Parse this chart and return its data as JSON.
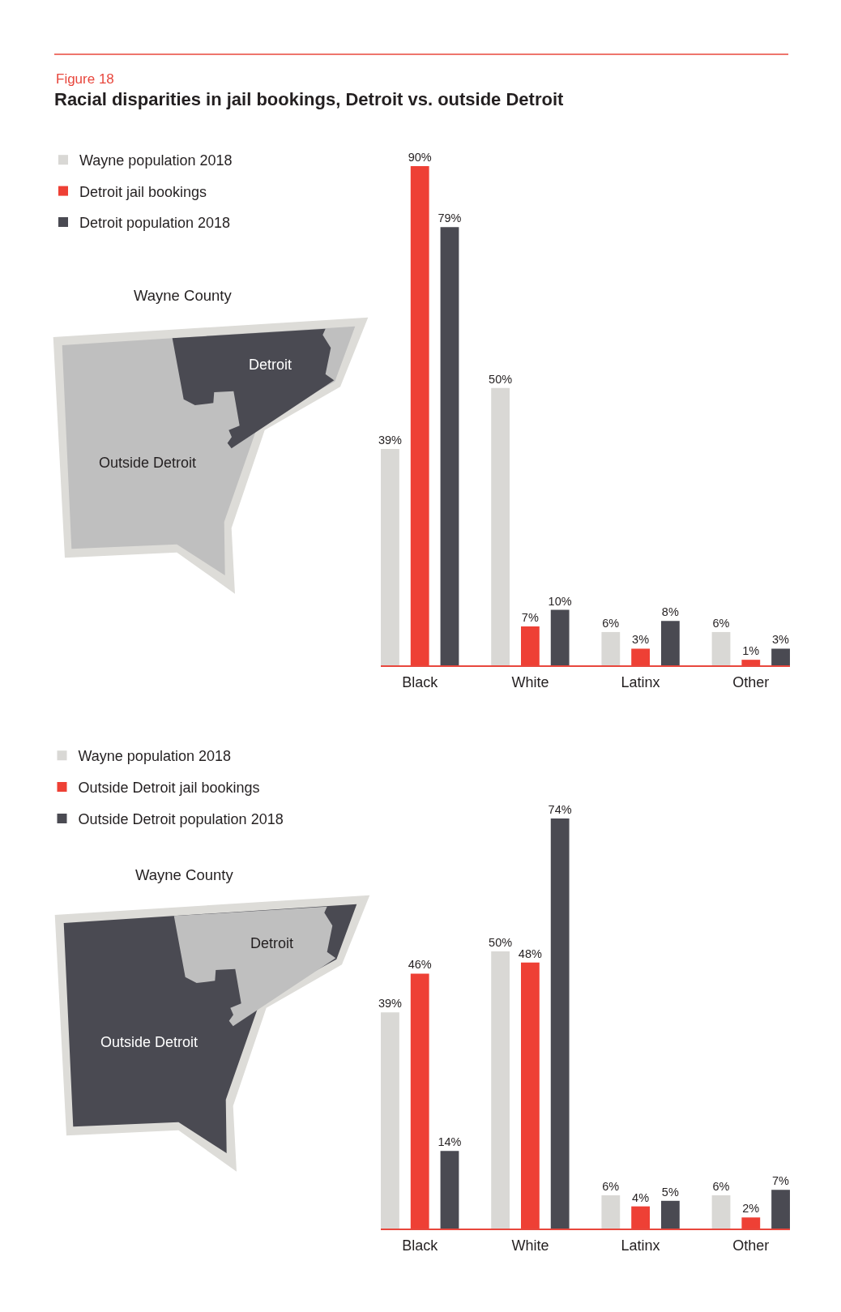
{
  "chart_data": [
    {
      "type": "bar",
      "title": "Racial disparities in jail bookings, Detroit vs. outside Detroit",
      "annotations": [
        "Figure 18",
        "Wayne County",
        "Detroit",
        "Outside Detroit"
      ],
      "categories": [
        "Black",
        "White",
        "Latinx",
        "Other"
      ],
      "series": [
        {
          "name": "Wayne population 2018",
          "color": "#d9d8d5",
          "values": [
            39,
            50,
            6,
            6
          ],
          "value_labels": [
            "39%",
            "50%",
            "6%",
            "6%"
          ]
        },
        {
          "name": "Detroit jail bookings",
          "color": "#ee4035",
          "values": [
            90,
            7,
            3,
            1
          ],
          "value_labels": [
            "90%",
            "7%",
            "3%",
            "1%"
          ]
        },
        {
          "name": "Detroit population 2018",
          "color": "#4a4a52",
          "values": [
            79,
            10,
            8,
            3
          ],
          "value_labels": [
            "79%",
            "10%",
            "8%",
            "3%"
          ]
        }
      ],
      "ylim": [
        0,
        90
      ],
      "legend": "top left",
      "tick_labels": "x"
    },
    {
      "type": "bar",
      "annotations": [
        "Wayne County",
        "Detroit",
        "Outside Detroit"
      ],
      "categories": [
        "Black",
        "White",
        "Latinx",
        "Other"
      ],
      "series": [
        {
          "name": "Wayne population 2018",
          "color": "#d9d8d5",
          "values": [
            39,
            50,
            6,
            6
          ],
          "value_labels": [
            "39%",
            "50%",
            "6%",
            "6%"
          ]
        },
        {
          "name": "Outside Detroit jail bookings",
          "color": "#ee4035",
          "values": [
            46,
            48,
            4,
            2
          ],
          "value_labels": [
            "46%",
            "48%",
            "4%",
            "2%"
          ]
        },
        {
          "name": "Outside Detroit population 2018",
          "color": "#4a4a52",
          "values": [
            14,
            74,
            5,
            7
          ],
          "value_labels": [
            "14%",
            "74%",
            "5%",
            "7%"
          ]
        }
      ],
      "ylim": [
        0,
        74
      ],
      "legend": "top left",
      "tick_labels": "x"
    }
  ]
}
